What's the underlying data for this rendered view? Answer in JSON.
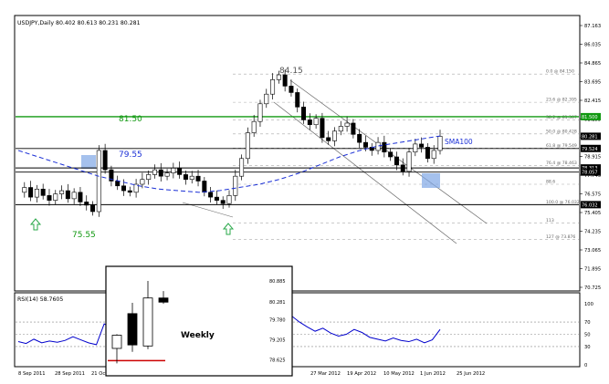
{
  "window": {
    "title": "USDJPY,Daily  80.402 80.613 80.231 80.281",
    "rsi_label": "RSI(14) 58.7605"
  },
  "price_axis": {
    "ticks": [
      "87.163",
      "86.035",
      "84.865",
      "83.695",
      "82.415",
      "81.255",
      "80.085",
      "78.915",
      "77.745",
      "76.575",
      "75.405",
      "74.235",
      "73.065",
      "71.895",
      "70.725"
    ],
    "current_price": "80.281",
    "level_tag_81": "81.500",
    "level_tag_7952": "79.524",
    "level_tag_7831": "78.313",
    "level_tag_78": "78.057",
    "level_tag_7603": "76.032"
  },
  "rsi_axis": {
    "ticks": [
      "100",
      "70",
      "50",
      "30",
      "0"
    ]
  },
  "time_axis": {
    "labels": [
      "8 Sep 2011",
      "28 Sep 2011",
      "21 Oct 2011",
      "",
      "",
      "",
      "",
      "",
      "27 Mar 2012",
      "19 Apr 2012",
      "10 May 2012",
      "1 Jun 2012",
      "25 Jun 2012"
    ]
  },
  "fib_levels": [
    "0.0 @ 84.150",
    "23.6 @ 82.395",
    "38.2 @ 81.307",
    "50.0 @ 80.428",
    "61.8 @ 79.549",
    "76.4 @ 78.463",
    "88.6",
    "100.0 @ 76.032",
    "113",
    "127 @ 73.876"
  ],
  "annotations": {
    "peak": "84.15",
    "resistance": "81.50",
    "mid": "79.55",
    "low": "75.55",
    "sma": "SMA100"
  },
  "inset": {
    "title": "Weekly",
    "ticks": [
      "80.885",
      "80.281",
      "79.780",
      "79.205",
      "78.625"
    ]
  },
  "colors": {
    "bull_candle": "#ffffff",
    "bear_candle": "#000000",
    "sma_line": "#1a2fd6",
    "resistance_line": "#119911",
    "support_line": "#000000",
    "rsi_line": "#0000cc",
    "zone_box": "#7fa6e6",
    "arrow": "#2aa84a",
    "inset_red_line": "#cc0000"
  },
  "chart_data": {
    "type": "candlestick",
    "symbol": "USDJPY",
    "timeframe": "Daily",
    "ohlc_header": {
      "open": 80.402,
      "high": 80.613,
      "low": 80.231,
      "close": 80.281
    },
    "ylim": [
      70.725,
      87.163
    ],
    "horizontal_levels": [
      {
        "label": "81.50",
        "value": 81.5,
        "color": "#119911"
      },
      {
        "label": "79.55",
        "value": 79.524
      },
      {
        "label": "",
        "value": 78.313
      },
      {
        "label": "",
        "value": 78.057
      },
      {
        "label": "75.55",
        "value": 76.032
      }
    ],
    "close_path": [
      76.8,
      77.1,
      76.5,
      77.0,
      76.6,
      76.3,
      76.7,
      76.9,
      76.4,
      76.8,
      76.2,
      76.0,
      75.6,
      79.4,
      78.2,
      77.5,
      77.2,
      76.9,
      76.8,
      77.3,
      77.6,
      77.9,
      78.2,
      77.8,
      78.0,
      78.3,
      77.9,
      77.6,
      77.8,
      77.5,
      76.8,
      76.5,
      76.3,
      76.1,
      76.6,
      77.8,
      78.9,
      80.5,
      81.2,
      82.3,
      82.9,
      83.8,
      84.1,
      83.4,
      83.0,
      82.1,
      81.3,
      81.0,
      81.4,
      80.2,
      80.0,
      80.6,
      80.9,
      81.1,
      80.4,
      79.9,
      79.6,
      79.4,
      79.9,
      79.3,
      79.0,
      78.5,
      78.1,
      79.3,
      79.8,
      79.6,
      78.9,
      79.4,
      80.28
    ],
    "sma100": [
      79.4,
      79.0,
      78.6,
      78.2,
      77.8,
      77.5,
      77.2,
      77.0,
      76.9,
      76.8,
      76.9,
      77.1,
      77.3,
      77.6,
      78.0,
      78.5,
      79.0,
      79.4,
      79.7,
      79.9,
      80.1,
      80.3
    ],
    "rsi": {
      "period": 14,
      "value": 58.7605,
      "levels": [
        70,
        50,
        30
      ],
      "values": [
        38,
        35,
        42,
        36,
        39,
        37,
        40,
        46,
        41,
        36,
        33,
        67,
        60,
        55,
        50,
        47,
        44,
        42,
        46,
        49,
        47,
        45,
        48,
        43,
        40,
        38,
        36,
        34,
        38,
        50,
        63,
        72,
        78,
        82,
        84,
        80,
        70,
        62,
        55,
        60,
        52,
        47,
        50,
        58,
        53,
        45,
        42,
        39,
        44,
        40,
        38,
        42,
        36,
        41,
        58
      ]
    },
    "weekly_inset": {
      "ylim": [
        78.425,
        81.1
      ],
      "candles": [
        {
          "o": 78.95,
          "h": 79.36,
          "l": 78.52,
          "c": 79.33
        },
        {
          "o": 79.95,
          "h": 80.26,
          "l": 78.85,
          "c": 79.05
        },
        {
          "o": 79.02,
          "h": 80.89,
          "l": 78.93,
          "c": 80.4
        },
        {
          "o": 80.4,
          "h": 80.6,
          "l": 80.23,
          "c": 80.28
        }
      ]
    }
  }
}
